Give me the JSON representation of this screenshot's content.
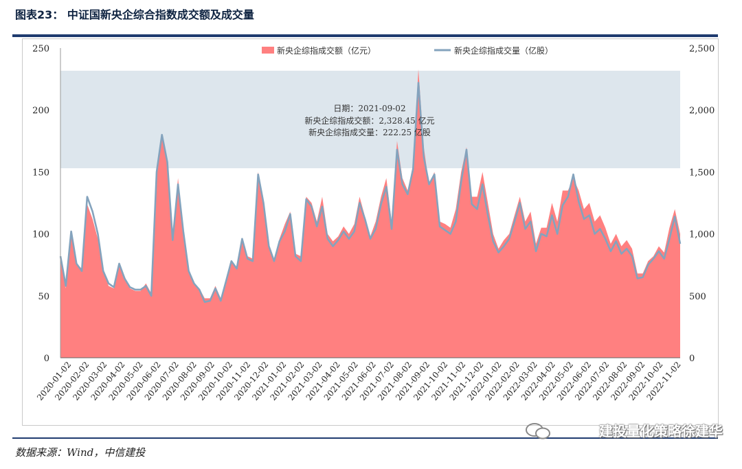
{
  "figure_title": "图表23： 中证国新央企综合指数成交额及成交量",
  "source_note": "数据来源：Wind，中信建投",
  "watermark_text": "建投量化策略徐建华",
  "colors": {
    "amount_fill": "#ff8080",
    "volume_line": "#84a3bd",
    "highlight": "#dde6ed",
    "rule": "#1f3b6f"
  },
  "tooltip": {
    "date_line": "日期：2021-09-02",
    "amount_line": "新央企综指成交额：2,328.45 亿元",
    "volume_line": "新央企综指成交量：222.25 亿股"
  },
  "chart_data": {
    "type": "area",
    "legend_position": "top-center",
    "grid": false,
    "y_left": {
      "min": 0,
      "max": 250,
      "ticks": [
        "0",
        "50",
        "100",
        "150",
        "200",
        "250"
      ]
    },
    "y_right": {
      "min": 0,
      "max": 2500,
      "ticks": [
        "0",
        "500",
        "1,000",
        "1,500",
        "2,000",
        "2,500"
      ]
    },
    "x_tick_labels": [
      "2020-01-02",
      "2020-02-02",
      "2020-03-02",
      "2020-04-02",
      "2020-05-02",
      "2020-06-02",
      "2020-07-02",
      "2020-08-02",
      "2020-09-02",
      "2020-10-02",
      "2020-11-02",
      "2020-12-02",
      "2021-01-02",
      "2021-02-02",
      "2021-03-02",
      "2021-04-02",
      "2021-05-02",
      "2021-06-02",
      "2021-07-02",
      "2021-08-02",
      "2021-09-02",
      "2021-10-02",
      "2021-11-02",
      "2021-12-02",
      "2022-01-02",
      "2022-02-02",
      "2022-03-02",
      "2022-04-02",
      "2022-05-02",
      "2022-06-02",
      "2022-07-02",
      "2022-08-02",
      "2022-09-02",
      "2022-10-02",
      "2022-11-02"
    ],
    "series": [
      {
        "name": "新央企综指成交额（亿元）",
        "kind": "area",
        "axis": "right",
        "values": [
          820,
          560,
          1000,
          760,
          720,
          1240,
          1120,
          960,
          720,
          580,
          560,
          760,
          660,
          560,
          540,
          540,
          600,
          520,
          1500,
          1800,
          1600,
          1000,
          1450,
          1050,
          720,
          600,
          560,
          480,
          480,
          580,
          480,
          600,
          780,
          720,
          960,
          820,
          800,
          1500,
          1250,
          920,
          800,
          960,
          1080,
          1180,
          840,
          820,
          1300,
          1250,
          1100,
          1300,
          1000,
          940,
          980,
          1060,
          1000,
          1080,
          1300,
          1140,
          980,
          1100,
          1300,
          1450,
          1100,
          1750,
          1450,
          1350,
          1560,
          2330,
          1700,
          1400,
          1500,
          1100,
          1080,
          1050,
          1200,
          1500,
          1700,
          1300,
          1300,
          1500,
          1250,
          1000,
          880,
          950,
          1000,
          1150,
          1300,
          1100,
          1180,
          920,
          1050,
          1050,
          1250,
          1100,
          1350,
          1350,
          1450,
          1350,
          1200,
          1250,
          1100,
          1150,
          1050,
          920,
          1000,
          900,
          950,
          880,
          680,
          680,
          780,
          820,
          900,
          850,
          1050,
          1200,
          1000
        ]
      },
      {
        "name": "新央企综指成交量（亿股）",
        "kind": "line",
        "axis": "left",
        "values": [
          82,
          58,
          102,
          76,
          70,
          130,
          118,
          100,
          70,
          60,
          57,
          76,
          64,
          57,
          55,
          55,
          58,
          50,
          150,
          180,
          158,
          95,
          140,
          102,
          70,
          60,
          55,
          45,
          46,
          56,
          46,
          62,
          78,
          72,
          96,
          80,
          78,
          148,
          125,
          90,
          78,
          94,
          102,
          116,
          82,
          78,
          128,
          122,
          106,
          122,
          96,
          90,
          95,
          102,
          96,
          102,
          125,
          112,
          96,
          104,
          124,
          138,
          104,
          168,
          140,
          132,
          152,
          222,
          162,
          140,
          148,
          106,
          103,
          100,
          110,
          142,
          168,
          124,
          120,
          140,
          115,
          94,
          85,
          90,
          96,
          110,
          125,
          104,
          110,
          86,
          100,
          98,
          115,
          100,
          123,
          130,
          148,
          126,
          112,
          115,
          100,
          104,
          96,
          86,
          94,
          84,
          88,
          82,
          64,
          65,
          75,
          80,
          86,
          80,
          96,
          114,
          92
        ]
      }
    ]
  }
}
